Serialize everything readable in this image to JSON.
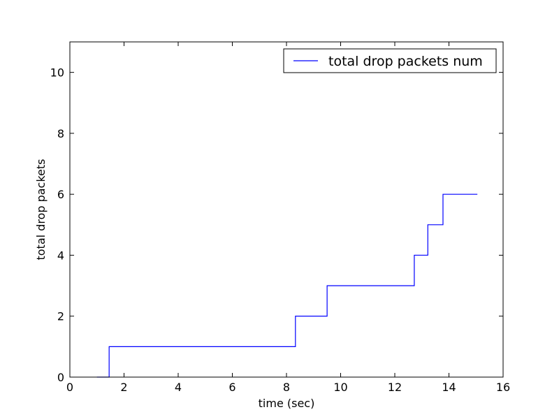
{
  "chart_data": {
    "type": "line",
    "title": "",
    "xlabel": "time (sec)",
    "ylabel": "total drop packets",
    "xlim": [
      0,
      16
    ],
    "ylim": [
      0,
      11
    ],
    "xticks": [
      0,
      2,
      4,
      6,
      8,
      10,
      12,
      14,
      16
    ],
    "yticks": [
      0,
      2,
      4,
      6,
      8,
      10
    ],
    "grid": false,
    "legend_position": "top-right",
    "series": [
      {
        "name": "total drop packets num",
        "color": "#0000ff",
        "drawstyle": "steps-post",
        "x": [
          1.0,
          1.45,
          8.33,
          9.5,
          12.72,
          13.22,
          13.78,
          15.05
        ],
        "y": [
          0,
          1,
          2,
          3,
          4,
          5,
          6,
          6
        ]
      }
    ]
  }
}
